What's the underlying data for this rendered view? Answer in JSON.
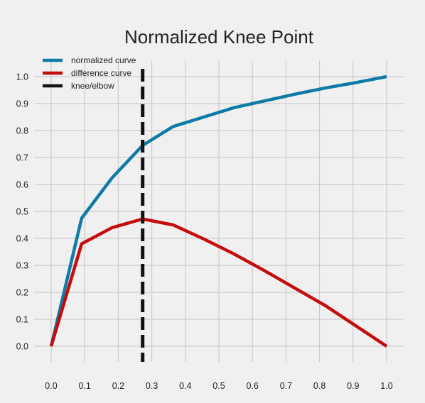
{
  "chart_data": {
    "type": "line",
    "title": "Normalized Knee Point",
    "xlabel": "",
    "ylabel": "",
    "xlim": [
      -0.05,
      1.05
    ],
    "ylim": [
      -0.05,
      1.05
    ],
    "x_ticks": [
      "0.0",
      "0.1",
      "0.2",
      "0.3",
      "0.4",
      "0.5",
      "0.6",
      "0.7",
      "0.8",
      "0.9",
      "1.0"
    ],
    "y_ticks": [
      "0.0",
      "0.1",
      "0.2",
      "0.3",
      "0.4",
      "0.5",
      "0.6",
      "0.7",
      "0.8",
      "0.9",
      "1.0"
    ],
    "grid": true,
    "legend_position": "top-left",
    "series": [
      {
        "name": "normalized curve",
        "color": "#0e7ba7",
        "x": [
          0.0,
          0.0909,
          0.1818,
          0.2727,
          0.3636,
          0.4545,
          0.5455,
          0.6364,
          0.7273,
          0.8182,
          0.9091,
          1.0
        ],
        "y": [
          0.0,
          0.475,
          0.625,
          0.745,
          0.815,
          0.85,
          0.885,
          0.91,
          0.935,
          0.958,
          0.978,
          1.0
        ]
      },
      {
        "name": "difference curve",
        "color": "#c40c0c",
        "x": [
          0.0,
          0.0909,
          0.1818,
          0.2727,
          0.3636,
          0.4545,
          0.5455,
          0.6364,
          0.7273,
          0.8182,
          0.9091,
          1.0
        ],
        "y": [
          0.0,
          0.38,
          0.44,
          0.472,
          0.45,
          0.398,
          0.342,
          0.28,
          0.215,
          0.15,
          0.075,
          0.0
        ]
      }
    ],
    "knee": {
      "name": "knee/elbow",
      "color": "#111111",
      "x": 0.2727
    }
  }
}
